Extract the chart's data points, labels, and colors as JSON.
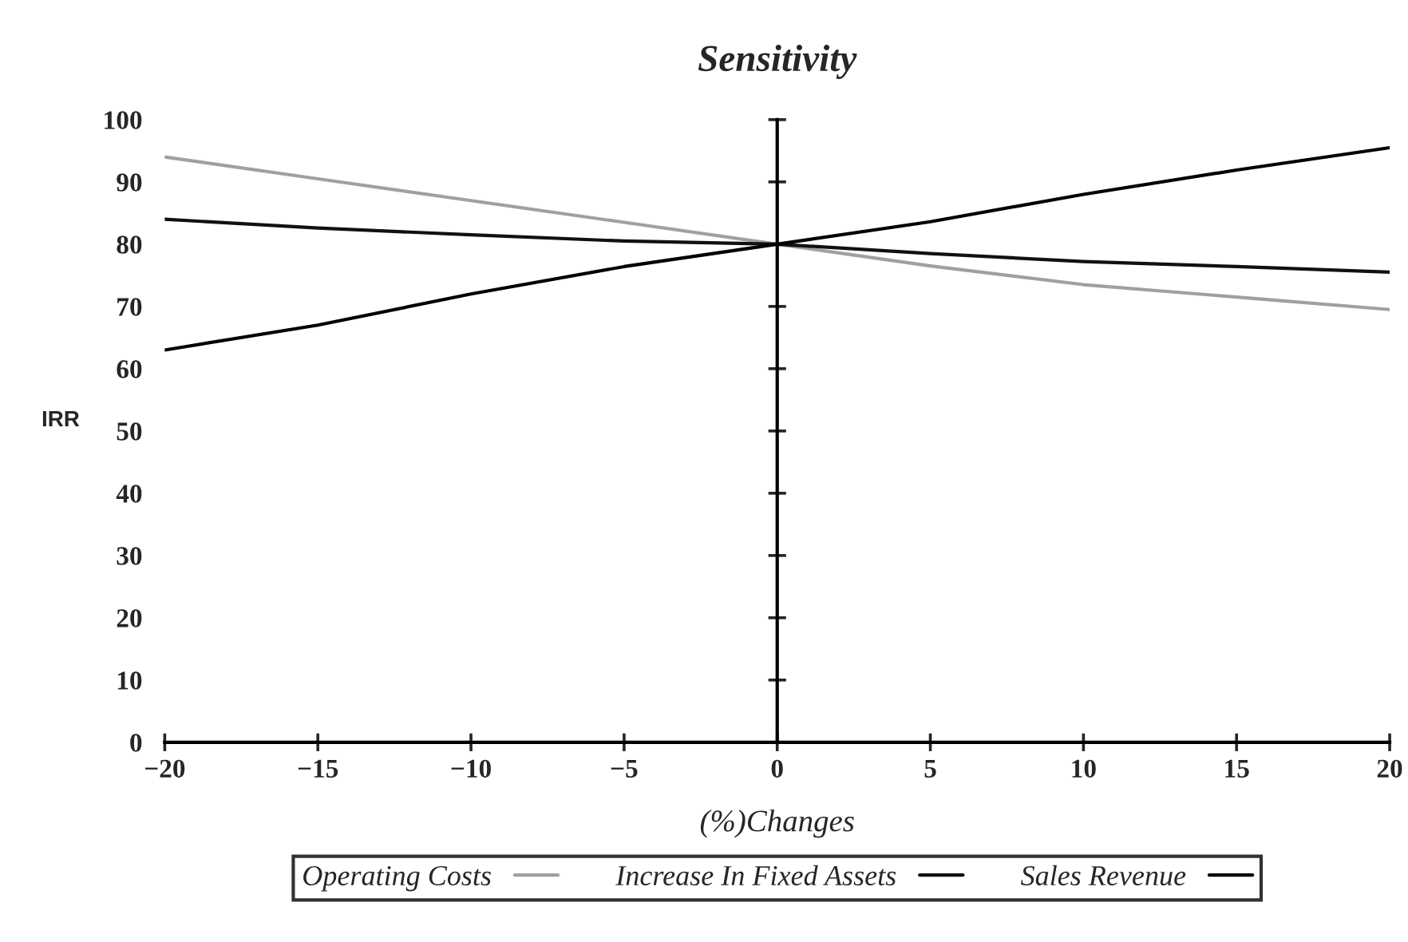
{
  "chart_data": {
    "type": "line",
    "title": "Sensitivity",
    "xlabel": "(%)Changes",
    "ylabel": "IRR",
    "x": [
      -20,
      -15,
      -10,
      -5,
      0,
      5,
      10,
      15,
      20
    ],
    "series": [
      {
        "name": "Operating Costs",
        "color": "#a0a0a0",
        "values": [
          94,
          90.5,
          87,
          83.5,
          80,
          76.5,
          73.5,
          71.5,
          69.5
        ]
      },
      {
        "name": "Increase In Fixed Assets",
        "color": "#111111",
        "values": [
          84,
          82.6,
          81.5,
          80.5,
          80,
          78.5,
          77.2,
          76.4,
          75.5
        ]
      },
      {
        "name": "Sales Revenue",
        "color": "#000000",
        "values": [
          63,
          67,
          72,
          76.4,
          80,
          83.6,
          88,
          91.9,
          95.5
        ]
      }
    ],
    "xlim": [
      -20,
      20
    ],
    "ylim": [
      0,
      100
    ],
    "xticks": [
      {
        "value": -20,
        "label": "−20"
      },
      {
        "value": -15,
        "label": "−15"
      },
      {
        "value": -10,
        "label": "−10"
      },
      {
        "value": -5,
        "label": "−5"
      },
      0,
      5,
      10,
      15,
      20
    ],
    "yticks": [
      0,
      10,
      20,
      30,
      40,
      50,
      60,
      70,
      80,
      90,
      100
    ],
    "legend": "bottom",
    "line_style": "solid"
  }
}
